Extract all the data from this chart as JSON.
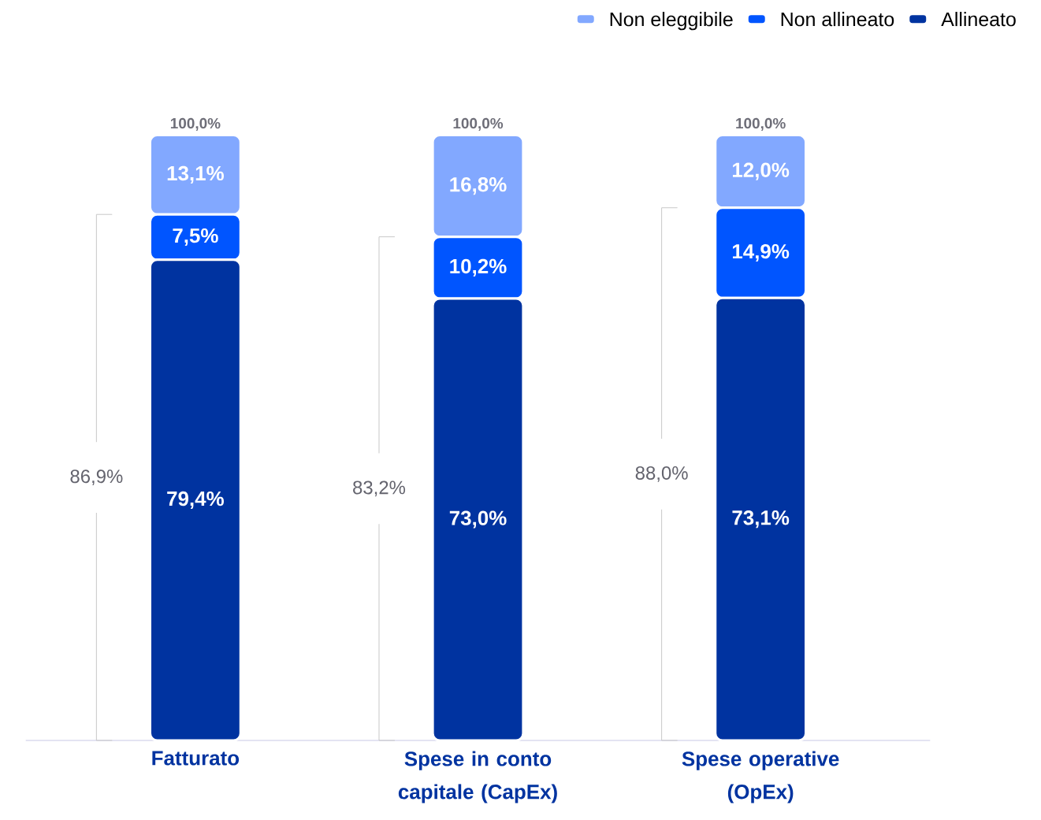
{
  "chart_data": {
    "type": "bar",
    "stacked": true,
    "categories": [
      "Fatturato",
      "Spese in conto capitale (CapEx)",
      "Spese operative (OpEx)"
    ],
    "series": [
      {
        "name": "Allineato",
        "color": "#0033a0",
        "values": [
          79.4,
          73.0,
          73.1
        ],
        "value_labels": [
          "79,4%",
          "73,0%",
          "73,1%"
        ]
      },
      {
        "name": "Non allineato",
        "color": "#0055ff",
        "values": [
          7.5,
          10.2,
          14.9
        ],
        "value_labels": [
          "7,5%",
          "10,2%",
          "14,9%"
        ]
      },
      {
        "name": "Non eleggibile",
        "color": "#82a8ff",
        "values": [
          13.1,
          16.8,
          12.0
        ],
        "value_labels": [
          "13,1%",
          "16,8%",
          "12,0%"
        ]
      }
    ],
    "totals": [
      "100,0%",
      "100,0%",
      "100,0%"
    ],
    "annotations": [
      "86,9%",
      "83,2%",
      "88,0%"
    ],
    "legend": "top right"
  }
}
